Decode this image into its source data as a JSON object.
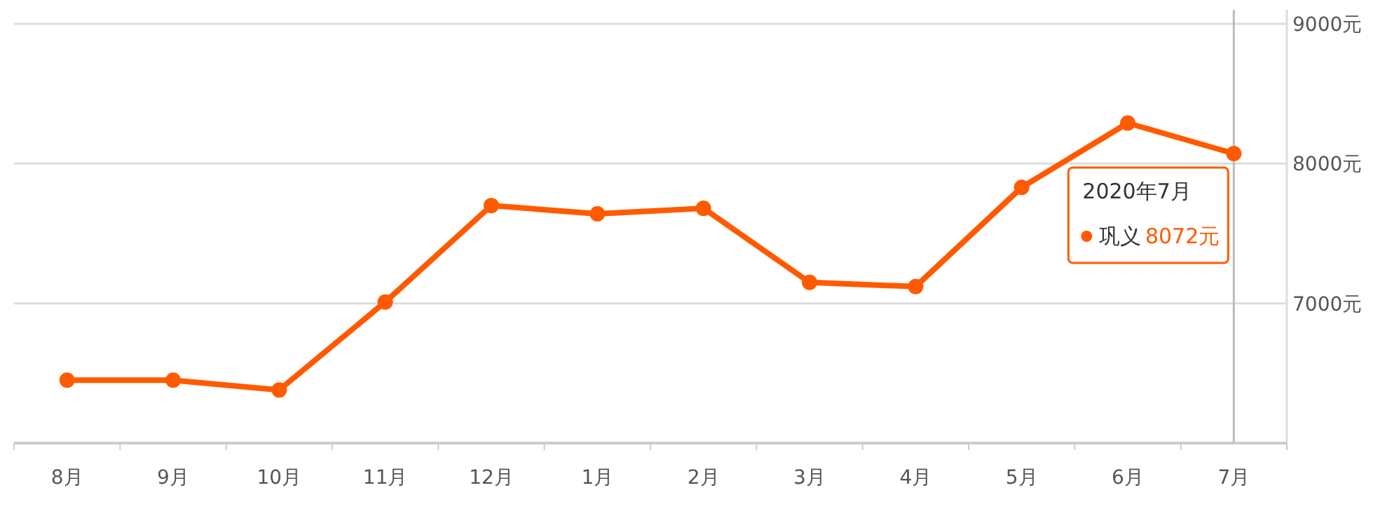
{
  "chart_data": {
    "type": "line",
    "categories": [
      "8月",
      "9月",
      "10月",
      "11月",
      "12月",
      "1月",
      "2月",
      "3月",
      "4月",
      "5月",
      "6月",
      "7月"
    ],
    "series": [
      {
        "name": "巩义",
        "color": "#ff5a00",
        "values": [
          6450,
          6450,
          6380,
          7010,
          7700,
          7640,
          7680,
          7150,
          7120,
          7830,
          8290,
          8072
        ],
        "value_labels": [
          null,
          null,
          null,
          null,
          null,
          null,
          null,
          null,
          null,
          null,
          null,
          "8072元"
        ]
      }
    ],
    "ylim": [
      6000,
      9000
    ],
    "yticks": [
      {
        "value": 6000,
        "label": null
      },
      {
        "value": 7000,
        "label": "7000元"
      },
      {
        "value": 8000,
        "label": "8000元"
      },
      {
        "value": 9000,
        "label": "9000元"
      }
    ],
    "annotations": [
      "2020年7月"
    ],
    "ref_lines": [
      {
        "axis": "x",
        "value": "7月",
        "color": "#bbbbbb"
      }
    ],
    "grid": "y",
    "legend": "right",
    "marker": "circle",
    "line_style": "solid"
  }
}
